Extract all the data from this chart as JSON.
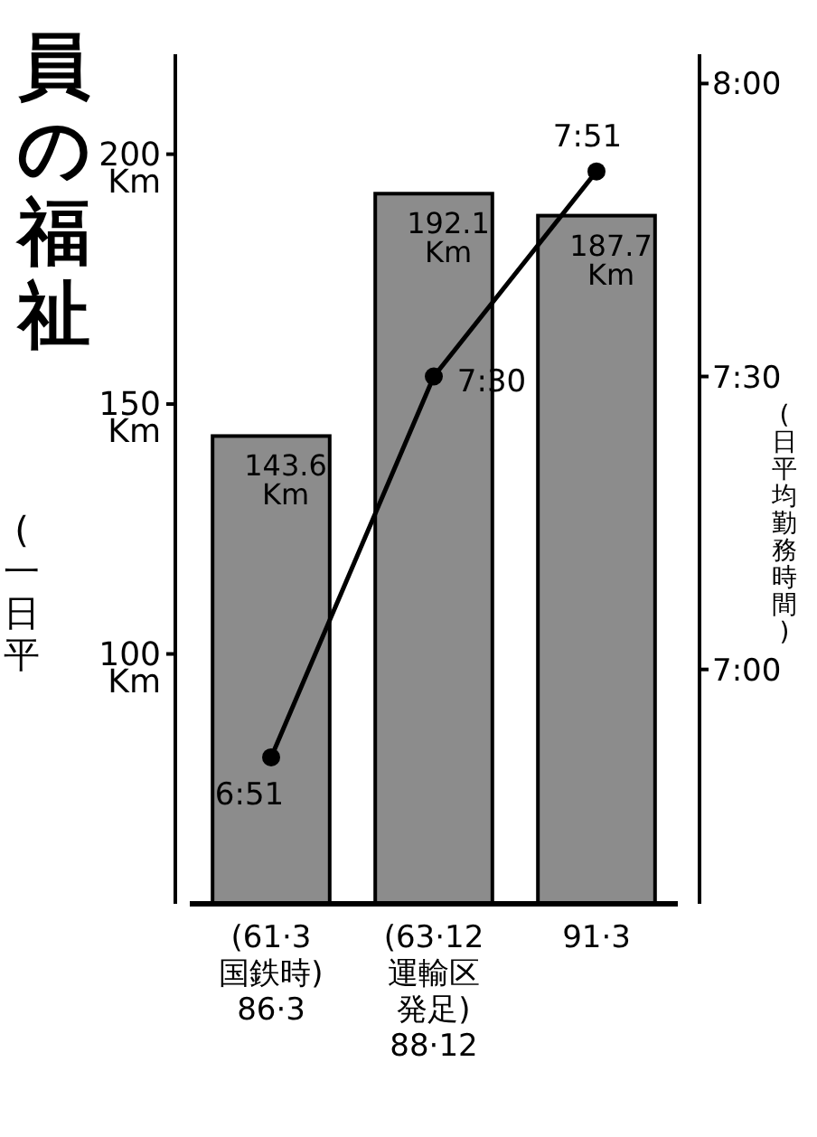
{
  "chart_data": {
    "type": "bar",
    "title": "員の福祉",
    "ylabel": "(一日平",
    "y2label": "(日平均勤務時間)",
    "categories": [
      "(61·3\n国鉄時)\n86·3",
      "(63·12\n運輸区発足)\n88·12",
      "91·3"
    ],
    "series": [
      {
        "color": "#8c8c8c",
        "values": [
          143.6,
          192.1,
          187.7
        ],
        "value_labels": [
          "143.6\nKm",
          "192.1\nKm",
          "187.7\nKm"
        ]
      },
      {
        "type": "line",
        "axis": "y2",
        "color": "#000000",
        "values": [
          6.85,
          7.5,
          7.85
        ],
        "value_labels": [
          "6:51",
          "7:30",
          "7:51"
        ]
      }
    ],
    "ylim": [
      50,
      220
    ],
    "yticks": [
      {
        "value": 100,
        "label": "100\nKm"
      },
      {
        "value": 150,
        "label": "150\nKm"
      },
      {
        "value": 200,
        "label": "200\nKm"
      }
    ],
    "y2lim": [
      6.6,
      8.05
    ],
    "y2ticks": [
      {
        "value": 7,
        "label": "7:00"
      },
      {
        "value": 7.5,
        "label": "7:30"
      },
      {
        "value": 8,
        "label": "8:00"
      }
    ],
    "marker": "circle",
    "line_style": "solid",
    "grid": false
  }
}
